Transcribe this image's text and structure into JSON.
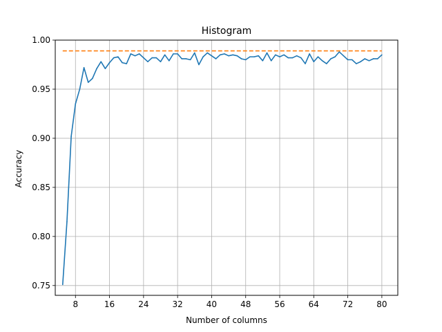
{
  "chart_data": {
    "type": "line",
    "title": "Histogram",
    "xlabel": "Number of columns",
    "ylabel": "Accuracy",
    "xlim": [
      3.25,
      83.75
    ],
    "ylim": [
      0.74,
      1.0
    ],
    "xticks": [
      8,
      16,
      24,
      32,
      40,
      48,
      56,
      64,
      72,
      80
    ],
    "yticks": [
      0.75,
      0.8,
      0.85,
      0.9,
      0.95,
      1.0
    ],
    "ytick_labels": [
      "0.75",
      "0.80",
      "0.85",
      "0.90",
      "0.95",
      "1.00"
    ],
    "grid": true,
    "series": [
      {
        "color": "#1f77b4",
        "style": "solid",
        "x": [
          5,
          6,
          7,
          8,
          9,
          10,
          11,
          12,
          13,
          14,
          15,
          16,
          17,
          18,
          19,
          20,
          21,
          22,
          23,
          24,
          25,
          26,
          27,
          28,
          29,
          30,
          31,
          32,
          33,
          34,
          35,
          36,
          37,
          38,
          39,
          40,
          41,
          42,
          43,
          44,
          45,
          46,
          47,
          48,
          49,
          50,
          51,
          52,
          53,
          54,
          55,
          56,
          57,
          58,
          59,
          60,
          61,
          62,
          63,
          64,
          65,
          66,
          67,
          68,
          69,
          70,
          71,
          72,
          73,
          74,
          75,
          76,
          77,
          78,
          79,
          80
        ],
        "y": [
          0.751,
          0.815,
          0.902,
          0.935,
          0.95,
          0.972,
          0.957,
          0.961,
          0.971,
          0.978,
          0.971,
          0.977,
          0.982,
          0.983,
          0.977,
          0.976,
          0.986,
          0.984,
          0.986,
          0.982,
          0.978,
          0.982,
          0.982,
          0.978,
          0.985,
          0.979,
          0.986,
          0.986,
          0.981,
          0.981,
          0.98,
          0.987,
          0.975,
          0.983,
          0.987,
          0.984,
          0.981,
          0.985,
          0.986,
          0.984,
          0.985,
          0.984,
          0.981,
          0.98,
          0.983,
          0.983,
          0.984,
          0.979,
          0.987,
          0.979,
          0.985,
          0.983,
          0.985,
          0.982,
          0.982,
          0.984,
          0.982,
          0.976,
          0.986,
          0.978,
          0.983,
          0.979,
          0.976,
          0.981,
          0.983,
          0.988,
          0.984,
          0.98,
          0.98,
          0.976,
          0.978,
          0.981,
          0.979,
          0.981,
          0.981,
          0.985
        ]
      },
      {
        "color": "#ff7f0e",
        "style": "dashed",
        "x": [
          5,
          80
        ],
        "y": [
          0.989,
          0.989
        ]
      }
    ]
  }
}
